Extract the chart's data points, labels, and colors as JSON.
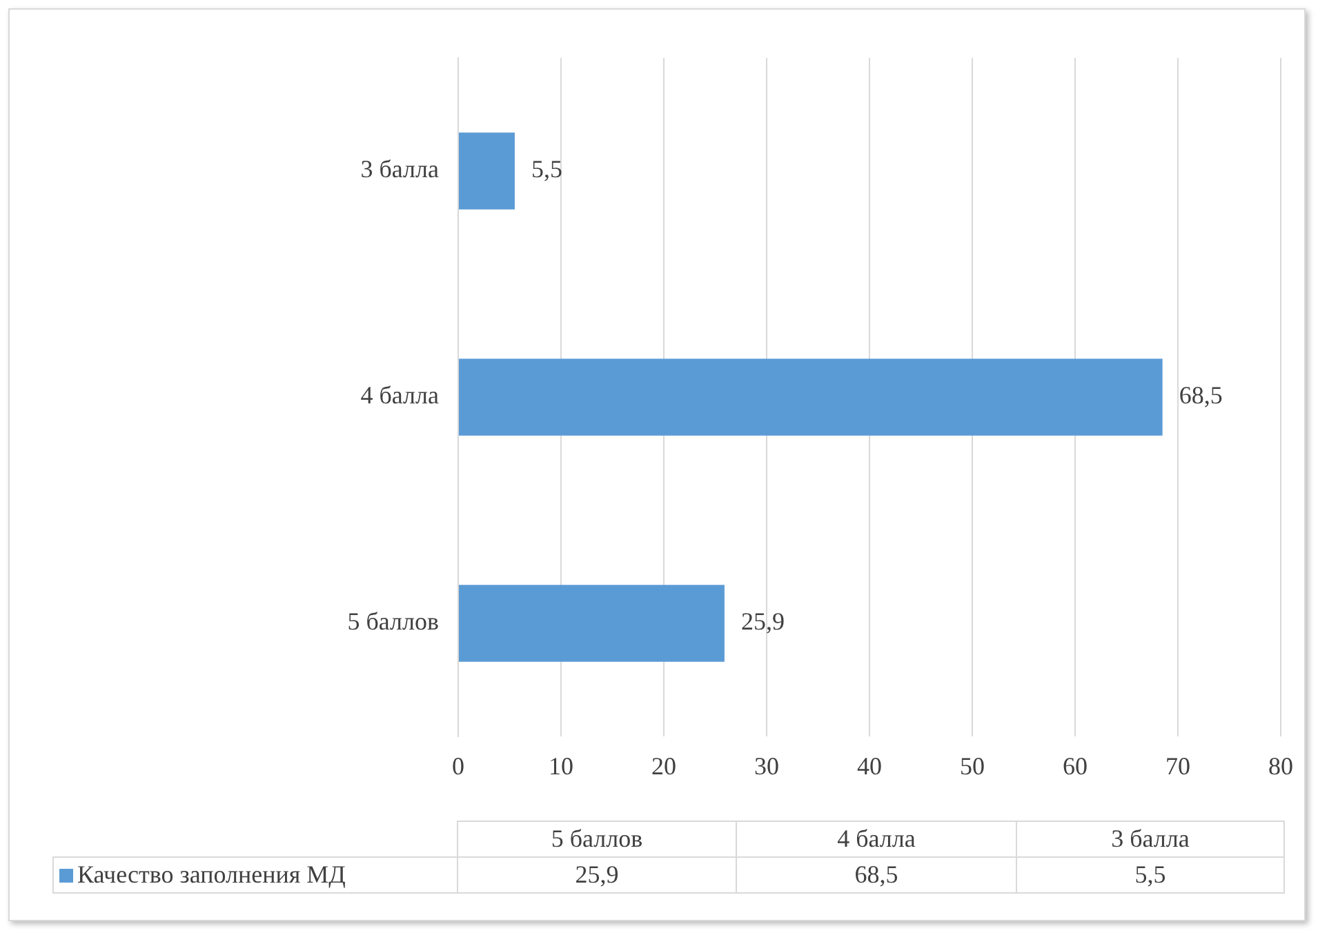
{
  "chart_data": {
    "type": "bar",
    "orientation": "horizontal",
    "categories": [
      "3 балла",
      "4 балла",
      "5 баллов"
    ],
    "series": [
      {
        "name": "Качество заполнения МД",
        "color": "#5b9bd5",
        "values": [
          5.5,
          68.5,
          25.9
        ],
        "value_labels": [
          "5,5",
          "68,5",
          "25,9"
        ]
      }
    ],
    "xlim": [
      0,
      80
    ],
    "xticks": [
      0,
      10,
      20,
      30,
      40,
      50,
      60,
      70,
      80
    ],
    "grid": "x",
    "legend": "bottom",
    "data_labels": false
  }
}
